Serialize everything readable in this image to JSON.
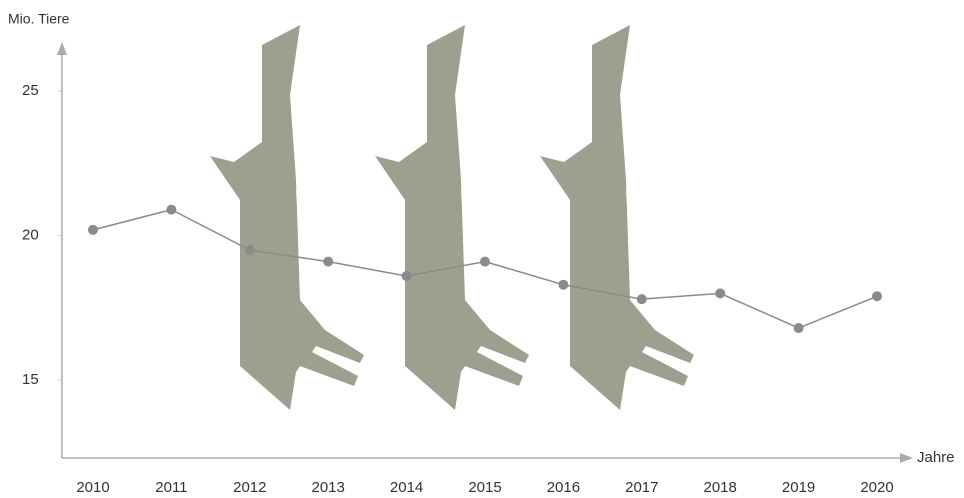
{
  "chart_data": {
    "type": "line",
    "y_label": "Mio. Tiere",
    "x_label": "Jahre",
    "categories": [
      "2010",
      "2011",
      "2012",
      "2013",
      "2014",
      "2015",
      "2016",
      "2017",
      "2018",
      "2019",
      "2020"
    ],
    "series": [
      {
        "color": "#8a8a8a",
        "values": [
          20.2,
          20.9,
          19.5,
          19.1,
          18.6,
          19.1,
          18.3,
          17.8,
          18.0,
          16.8,
          17.9
        ]
      }
    ],
    "ylim": [
      12.3,
      26.6
    ],
    "yticks": [
      15,
      20,
      25
    ],
    "grid": false
  }
}
